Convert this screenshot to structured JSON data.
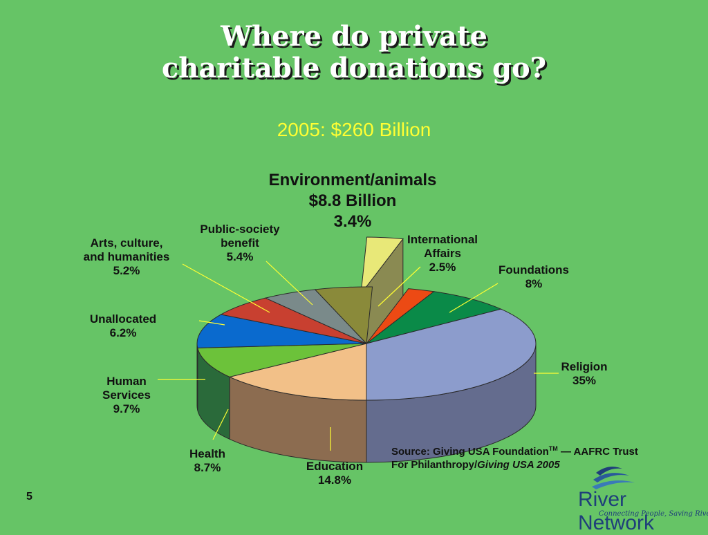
{
  "title_line1": "Where do private",
  "title_line2": "charitable donations go?",
  "subtitle": "2005:  $260 Billion",
  "source": {
    "prefix": "Source: Giving USA Foundation",
    "tm": "TM",
    "suffix": " — AAFRC Trust",
    "line2_plain": "For Philanthropy/",
    "line2_italic": "Giving USA 2005"
  },
  "page_number": "5",
  "logo": {
    "name": "River Network",
    "tagline": "Connecting People, Saving Rivers"
  },
  "chart_data": {
    "type": "pie",
    "title": "2005:  $260 Billion",
    "slices": [
      {
        "name": "Environment/animals",
        "lines": [
          "Environment/animals",
          "$8.8 Billion",
          "3.4%"
        ],
        "value": 3.4,
        "top": "#e8e878",
        "side": "#8a8a52",
        "exploded": true
      },
      {
        "name": "International Affairs",
        "lines": [
          "International",
          "Affairs",
          "2.5%"
        ],
        "value": 2.5,
        "top": "#ec4a14",
        "side": "#9a2a0a"
      },
      {
        "name": "Foundations",
        "lines": [
          "Foundations",
          "8%"
        ],
        "value": 8,
        "top": "#0a8a48",
        "side": "#05562c"
      },
      {
        "name": "Religion",
        "lines": [
          "Religion",
          "35%"
        ],
        "value": 35,
        "top": "#8c9ccc",
        "side": "#646c8e"
      },
      {
        "name": "Education",
        "lines": [
          "Education",
          "14.8%"
        ],
        "value": 14.8,
        "top": "#f2c088",
        "side": "#8c6c50"
      },
      {
        "name": "Health",
        "lines": [
          "Health",
          "8.7%"
        ],
        "value": 8.7,
        "top": "#6cc23a",
        "side": "#2a6a3a"
      },
      {
        "name": "Human Services",
        "lines": [
          "Human",
          "Services",
          "9.7%"
        ],
        "value": 9.7,
        "top": "#0a6ace",
        "side": "#1e2e80"
      },
      {
        "name": "Unallocated",
        "lines": [
          "Unallocated",
          "6.2%"
        ],
        "value": 6.2,
        "top": "#c84030",
        "side": "#7a2418"
      },
      {
        "name": "Arts, culture, and humanities",
        "lines": [
          "Arts, culture,",
          "and humanities",
          "5.2%"
        ],
        "value": 5.2,
        "top": "#7a8a8a",
        "side": "#4a5656"
      },
      {
        "name": "Public-society benefit",
        "lines": [
          "Public-society",
          "benefit",
          "5.4%"
        ],
        "value": 5.4,
        "top": "#8a8a3a",
        "side": "#565626"
      }
    ]
  }
}
